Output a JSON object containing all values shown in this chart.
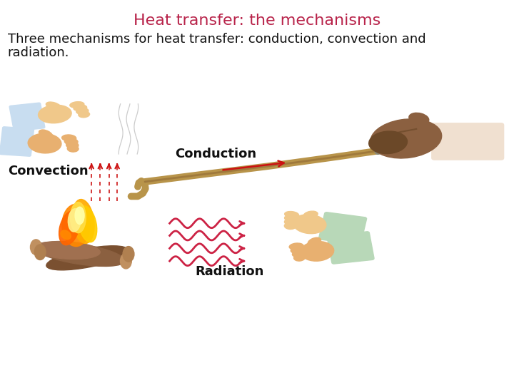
{
  "title": "Heat transfer: the mechanisms",
  "title_color": "#b8234a",
  "title_fontsize": 16,
  "body_text_line1": "Three mechanisms for heat transfer: conduction, convection and",
  "body_text_line2": "radiation.",
  "body_fontsize": 13,
  "body_color": "#111111",
  "bg_color": "#ffffff",
  "label_conduction": "Conduction",
  "label_convection": "Convection",
  "label_radiation": "Radiation",
  "label_fontsize": 12,
  "label_color": "#111111",
  "arrow_color": "#cc1111",
  "wave_color": "#cc2244",
  "rod_color": "#b8944a",
  "rod_tip_color": "#888877",
  "glove_color": "#8b6040",
  "glove_dark": "#6b4828",
  "cuff_color": "#f0e0d0",
  "sleeve_color_blue": "#c8ddf0",
  "skin_color_light": "#f0c88a",
  "skin_color_dark": "#e8b070",
  "sleeve_color_green": "#b8d8b8",
  "skin_warm": "#f2c080",
  "log_color1": "#8B6040",
  "log_color2": "#7a5030",
  "flame_orange": "#ff8800",
  "flame_yellow": "#ffcc00",
  "figsize": [
    7.2,
    5.4
  ],
  "dpi": 100
}
